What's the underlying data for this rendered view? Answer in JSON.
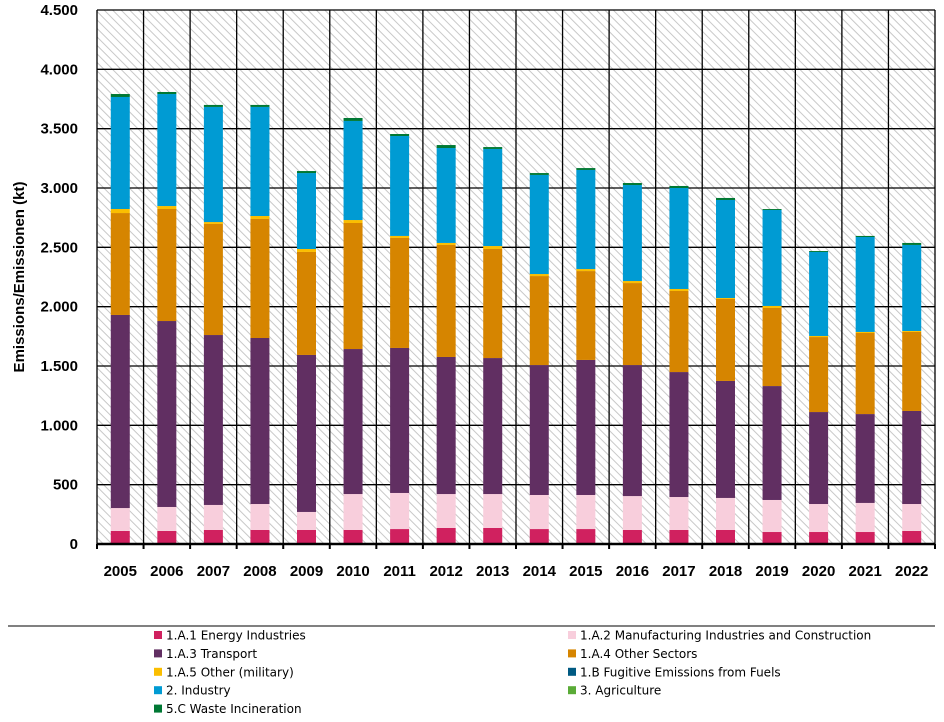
{
  "chart_data": {
    "type": "bar",
    "stacked": true,
    "title": "",
    "xlabel": "",
    "ylabel": "Emissions/Emissionen (kt)",
    "ylim": [
      0,
      4500
    ],
    "yticks": [
      0,
      500,
      1000,
      1500,
      2000,
      2500,
      3000,
      3500,
      4000,
      4500
    ],
    "ytick_labels": [
      "0",
      "500",
      "1.000",
      "1.500",
      "2.000",
      "2.500",
      "3.000",
      "3.500",
      "4.000",
      "4.500"
    ],
    "grid": true,
    "legend_placement": "bottom",
    "categories": [
      "2005",
      "2006",
      "2007",
      "2008",
      "2009",
      "2010",
      "2011",
      "2012",
      "2013",
      "2014",
      "2015",
      "2016",
      "2017",
      "2018",
      "2019",
      "2020",
      "2021",
      "2022"
    ],
    "series": [
      {
        "name": "1.A.1 Energy Industries",
        "color": "#d0215f",
        "values": [
          110,
          110,
          118,
          118,
          118,
          118,
          126,
          135,
          135,
          126,
          126,
          118,
          118,
          118,
          101,
          101,
          101,
          110
        ]
      },
      {
        "name": "1.A.2 Manufacturing Industries and Construction",
        "color": "#f8cedc",
        "values": [
          193,
          202,
          211,
          219,
          152,
          303,
          304,
          286,
          286,
          287,
          287,
          286,
          278,
          270,
          270,
          236,
          245,
          227
        ]
      },
      {
        "name": "1.A.3 Transport",
        "color": "#612f62",
        "values": [
          1627,
          1567,
          1432,
          1399,
          1323,
          1222,
          1222,
          1155,
          1146,
          1095,
          1138,
          1104,
          1053,
          986,
          960,
          775,
          749,
          784
        ]
      },
      {
        "name": "1.A.4 Other Sectors",
        "color": "#d68500",
        "values": [
          859,
          944,
          936,
          1003,
          868,
          1062,
          927,
          944,
          919,
          750,
          749,
          691,
          683,
          691,
          658,
          632,
          683,
          666
        ]
      },
      {
        "name": "1.A.5 Other (military)",
        "color": "#fbbe00",
        "values": [
          34,
          25,
          16,
          25,
          25,
          25,
          17,
          17,
          25,
          17,
          17,
          17,
          17,
          8,
          17,
          9,
          9,
          8
        ]
      },
      {
        "name": "1.B Fugitive Emissions from Fuels",
        "color": "#005a82",
        "values": [
          0,
          0,
          0,
          0,
          0,
          0,
          0,
          0,
          0,
          0,
          0,
          0,
          0,
          0,
          0,
          0,
          0,
          0
        ]
      },
      {
        "name": "2. Industry",
        "color": "#009bd3",
        "values": [
          944,
          944,
          970,
          919,
          640,
          835,
          842,
          800,
          818,
          835,
          835,
          809,
          851,
          826,
          809,
          708,
          800,
          725
        ]
      },
      {
        "name": "3. Agriculture",
        "color": "#5aab37",
        "values": [
          0,
          0,
          0,
          0,
          0,
          0,
          0,
          0,
          0,
          0,
          0,
          0,
          0,
          0,
          0,
          0,
          0,
          0
        ]
      },
      {
        "name": "5.C Waste Incineration",
        "color": "#007834",
        "values": [
          25,
          17,
          17,
          17,
          17,
          25,
          17,
          25,
          16,
          16,
          16,
          17,
          17,
          17,
          8,
          8,
          9,
          17
        ]
      }
    ]
  }
}
